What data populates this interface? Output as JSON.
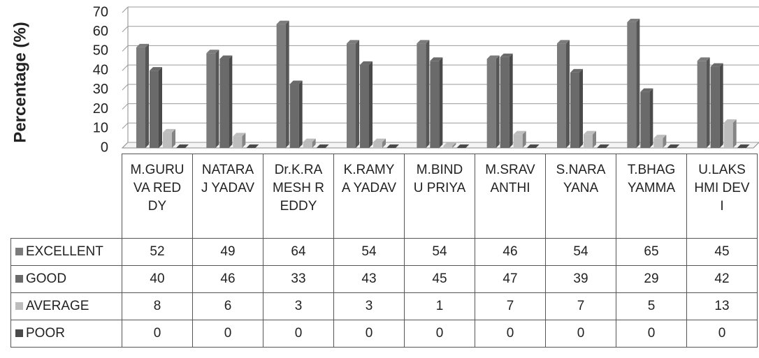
{
  "chart_data": {
    "type": "bar",
    "y_axis_label": "Percentage (%)",
    "categories": [
      "M.GURUVA REDDY",
      "NATARAJ YADAV",
      "Dr.K.RAMESH REDDY",
      "K.RAMYA YADAV",
      "M.BINDU PRIYA",
      "M.SRAVANTHI",
      "S.NARAYANA",
      "T.BHAGYAMMA",
      "U.LAKSHMI DEVI"
    ],
    "series": [
      {
        "name": "EXCELLENT",
        "color": "#7b7b7b",
        "values": [
          52,
          49,
          64,
          54,
          54,
          46,
          54,
          65,
          45
        ]
      },
      {
        "name": "GOOD",
        "color": "#6a6a6a",
        "values": [
          40,
          46,
          33,
          43,
          45,
          47,
          39,
          29,
          42
        ]
      },
      {
        "name": "AVERAGE",
        "color": "#bdbdbd",
        "values": [
          8,
          6,
          3,
          3,
          1,
          7,
          7,
          5,
          13
        ]
      },
      {
        "name": "POOR",
        "color": "#4a4a4a",
        "values": [
          0,
          0,
          0,
          0,
          0,
          0,
          0,
          0,
          0
        ]
      }
    ],
    "ylim": [
      0,
      70
    ],
    "yticks": [
      0,
      10,
      20,
      30,
      40,
      50,
      60,
      70
    ],
    "grid": true
  }
}
